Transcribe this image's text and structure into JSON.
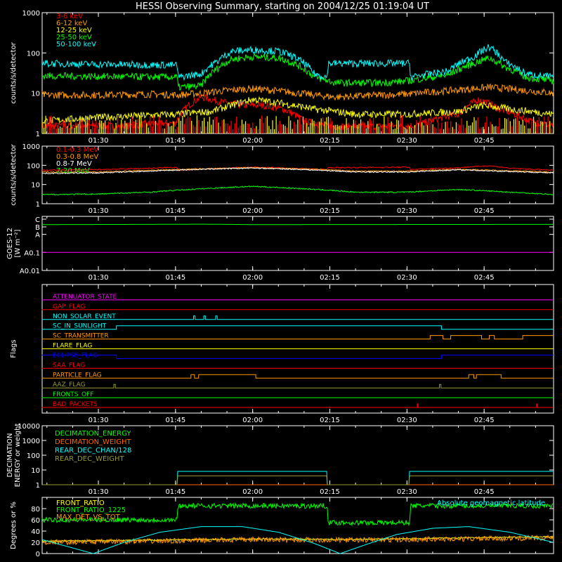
{
  "title": "HESSI Observing Summary, starting on 2004/12/25 01:19:04 UT",
  "time_ticks": [
    {
      "label": "01:30",
      "minutes": 90
    },
    {
      "label": "01:45",
      "minutes": 105
    },
    {
      "label": "02:00",
      "minutes": 120
    },
    {
      "label": "02:15",
      "minutes": 135
    },
    {
      "label": "02:30",
      "minutes": 150
    },
    {
      "label": "02:45",
      "minutes": 165
    }
  ],
  "time_range_minutes": [
    79.07,
    178.5
  ],
  "chart_data": [
    {
      "id": "xray-rates",
      "type": "line",
      "ylabel": "counts/s/detector",
      "yscale": "log",
      "ylim": [
        1,
        1000
      ],
      "yticks": [
        {
          "label": "1",
          "v": 1
        },
        {
          "label": "10",
          "v": 10
        },
        {
          "label": "100",
          "v": 100
        },
        {
          "label": "1000",
          "v": 1000
        }
      ],
      "series": [
        {
          "name": "3-6 keV",
          "color": "#ff0000",
          "x": [
            79,
            86,
            94,
            102,
            105,
            110,
            114,
            118,
            122,
            126,
            130,
            135,
            145,
            152,
            160,
            164,
            168,
            174,
            178.5
          ],
          "y": [
            1.5,
            1.6,
            1.5,
            1.8,
            1.8,
            8,
            6,
            5,
            5,
            4,
            2,
            1.5,
            1.5,
            1.6,
            3,
            7,
            4,
            2,
            1.5
          ]
        },
        {
          "name": "6-12 keV",
          "color": "#ff9900",
          "x": [
            79,
            90,
            100,
            105.5,
            110,
            116,
            120,
            126,
            132,
            136,
            145,
            150,
            160,
            166,
            172,
            178.5
          ],
          "y": [
            9,
            9,
            9.5,
            9,
            10,
            12,
            13,
            11,
            9,
            8,
            9,
            9.5,
            12,
            14,
            12,
            10
          ]
        },
        {
          "name": "12-25 keV",
          "color": "#ffff00",
          "x": [
            79,
            90,
            105,
            112,
            116,
            120,
            124,
            128,
            132,
            140,
            150,
            160,
            165,
            170,
            178.5
          ],
          "y": [
            2,
            2.5,
            3,
            3.5,
            5,
            7,
            6,
            5,
            4,
            3,
            3,
            3.5,
            5,
            4,
            3
          ]
        },
        {
          "name": "25-50 keV",
          "color": "#00ff00",
          "x": [
            79,
            90,
            105.3,
            105.5,
            110,
            113,
            116,
            120,
            125,
            128,
            132,
            136,
            145,
            150,
            158,
            163,
            166,
            169,
            173,
            178.5
          ],
          "y": [
            27,
            26,
            25,
            14,
            15,
            40,
            70,
            80,
            75,
            55,
            25,
            18,
            18,
            20,
            28,
            55,
            75,
            45,
            25,
            20
          ]
        },
        {
          "name": "50-100 keV",
          "color": "#00ffff",
          "x": [
            79,
            90,
            104,
            105.3,
            105.5,
            110,
            113,
            116,
            120,
            125,
            128,
            132,
            134.5,
            134.7,
            145,
            150.5,
            150.7,
            158,
            163,
            166,
            169,
            173,
            178.5
          ],
          "y": [
            55,
            52,
            50,
            50,
            25,
            30,
            60,
            110,
            120,
            110,
            80,
            30,
            25,
            55,
            55,
            55,
            25,
            35,
            80,
            140,
            60,
            30,
            25
          ]
        }
      ],
      "attenuator": {
        "y": 0.7
      },
      "layout_legend": "top-left"
    },
    {
      "id": "gamma-rates",
      "type": "line",
      "ylabel": "counts/s/detector",
      "yscale": "log",
      "ylim": [
        1,
        1000
      ],
      "yticks": [
        {
          "label": "1",
          "v": 1
        },
        {
          "label": "10",
          "v": 10
        },
        {
          "label": "100",
          "v": 100
        },
        {
          "label": "1000",
          "v": 1000
        }
      ],
      "series": [
        {
          "name": "0.1-0.3 MeV",
          "color": "#ff0000",
          "x": [
            79,
            90,
            100,
            105.3,
            105.5,
            120,
            134.5,
            134.7,
            150.5,
            150.7,
            160,
            166,
            170,
            178.5
          ],
          "y": [
            55,
            60,
            70,
            80,
            55,
            80,
            60,
            75,
            80,
            60,
            75,
            95,
            70,
            55
          ]
        },
        {
          "name": "0.3-0.8 MeV",
          "color": "#ff9900",
          "x": [
            79,
            90,
            100,
            110,
            120,
            130,
            140,
            150,
            160,
            170,
            178.5
          ],
          "y": [
            45,
            45,
            55,
            65,
            75,
            65,
            50,
            50,
            62,
            52,
            44
          ]
        },
        {
          "name": "0.8-7 MeV",
          "color": "#ffffff",
          "x": [
            79,
            90,
            100,
            110,
            120,
            130,
            140,
            150,
            160,
            170,
            178.5
          ],
          "y": [
            38,
            40,
            50,
            62,
            72,
            60,
            45,
            45,
            58,
            48,
            40
          ]
        },
        {
          "name": "7-20 MeV",
          "color": "#00ff00",
          "x": [
            79,
            90,
            100,
            110,
            120,
            130,
            140,
            150,
            160,
            170,
            178.5
          ],
          "y": [
            3,
            3.2,
            4,
            6,
            8,
            6,
            4,
            4,
            5.5,
            4,
            3
          ]
        }
      ],
      "layout_legend": "top-left"
    },
    {
      "id": "goes",
      "type": "line",
      "ylabel": "GOES-12 [W m⁻²]",
      "ylabel_lines": [
        "GOES-12",
        "[W m⁻²]"
      ],
      "yscale": "log",
      "ylim": [
        0.01,
        10
      ],
      "yticks": [
        {
          "label": "A0.01",
          "v": 0.01
        },
        {
          "label": "A0.1",
          "v": 0.1
        },
        {
          "label": "A",
          "v": 1
        },
        {
          "label": "B",
          "v": 2.6
        },
        {
          "label": "C",
          "v": 7
        }
      ],
      "series": [
        {
          "name": "",
          "color": "#00ff00",
          "x": [
            79,
            100,
            110,
            120,
            178.5
          ],
          "y": [
            3.5,
            3.6,
            3.7,
            3.5,
            3.6
          ]
        },
        {
          "name": "",
          "color": "#ff00ff",
          "x": [
            79,
            178.5
          ],
          "y": [
            0.1,
            0.1
          ]
        }
      ]
    },
    {
      "id": "flags",
      "type": "line",
      "ylabel": "Flags",
      "ylim": [
        0,
        13
      ],
      "flags": [
        {
          "name": "ATTENUATOR_STATE",
          "color": "#ff00ff",
          "base": 0,
          "x": [
            79,
            178.5
          ],
          "y": [
            0,
            0
          ]
        },
        {
          "name": "GAP_FLAG",
          "color": "#ff0000",
          "base": 1,
          "x": [
            79,
            178.5
          ],
          "y": [
            0,
            0
          ]
        },
        {
          "name": "NON_SOLAR_EVENT",
          "color": "#00ffff",
          "base": 2,
          "x": [
            79,
            108.5,
            108.5,
            108.8,
            108.8,
            110.5,
            110.5,
            110.8,
            110.8,
            112.8,
            112.8,
            113.1,
            113.1,
            178.5
          ],
          "y": [
            0,
            0,
            1,
            1,
            0,
            0,
            1,
            1,
            0,
            0,
            1,
            1,
            0,
            0
          ]
        },
        {
          "name": "SC_IN_SUNLIGHT",
          "color": "#00ffff",
          "base": 3,
          "x": [
            79,
            93.5,
            93.5,
            156.7,
            156.7,
            178.5
          ],
          "y": [
            0,
            0,
            1,
            1,
            0,
            0
          ]
        },
        {
          "name": "SC_TRANSMITTER",
          "color": "#ff9900",
          "base": 4,
          "x": [
            79,
            154.5,
            154.5,
            157,
            157,
            158.5,
            158.5,
            164.5,
            164.5,
            166,
            166,
            167,
            167,
            172.5,
            172.5,
            178.5
          ],
          "y": [
            0,
            0,
            1,
            1,
            0,
            0,
            1,
            1,
            0,
            0,
            1,
            1,
            0,
            0,
            1,
            1
          ]
        },
        {
          "name": "FLARE_FLAG",
          "color": "#ffff00",
          "base": 5,
          "x": [
            79,
            178.5
          ],
          "y": [
            0,
            0
          ]
        },
        {
          "name": "ECLIPSE_FLAG",
          "color": "#0000ff",
          "base": 6,
          "x": [
            79,
            93.5,
            93.5,
            156.7,
            156.7,
            178.5
          ],
          "y": [
            1,
            1,
            0,
            0,
            1,
            1
          ]
        },
        {
          "name": "SAA_FLAG",
          "color": "#ff0000",
          "base": 7,
          "x": [
            79,
            178.5
          ],
          "y": [
            0,
            0
          ]
        },
        {
          "name": "PARTICLE_FLAG",
          "color": "#ff9900",
          "base": 8,
          "x": [
            79,
            108,
            108,
            108.7,
            108.7,
            109.5,
            109.5,
            120.6,
            120.6,
            162,
            162,
            163,
            163,
            163.5,
            163.5,
            168.3,
            168.3,
            178.5
          ],
          "y": [
            0,
            0,
            1,
            1,
            0,
            0,
            1,
            1,
            0,
            0,
            1,
            1,
            0,
            0,
            1,
            1,
            0,
            0
          ]
        },
        {
          "name": "AAZ_FLAG",
          "color": "#999933",
          "base": 9,
          "x": [
            79,
            93,
            93,
            93.3,
            93.3,
            156.3,
            156.3,
            156.6,
            156.6,
            178.5
          ],
          "y": [
            0,
            0,
            1,
            1,
            0,
            0,
            1,
            1,
            0,
            0
          ]
        },
        {
          "name": "FRONTS_OFF",
          "color": "#00ff00",
          "base": 10,
          "x": [
            79,
            178.5
          ],
          "y": [
            0,
            0
          ]
        },
        {
          "name": "BAD_PACKETS",
          "color": "#ff0000",
          "base": 11,
          "x": [
            79,
            152,
            152,
            152.15,
            152.15,
            175.2,
            175.2,
            175.35,
            175.35,
            178.5
          ],
          "y": [
            0,
            0,
            1,
            1,
            0,
            0,
            1,
            1,
            0,
            0
          ]
        }
      ]
    },
    {
      "id": "decimation",
      "type": "line",
      "ylabel": "DECIMATION ENERGY or weight",
      "ylabel_lines": [
        "DECIMATION",
        "ENERGY or weight"
      ],
      "yscale": "log",
      "ylim": [
        1,
        10000
      ],
      "yticks": [
        {
          "label": "1",
          "v": 1
        },
        {
          "label": "10",
          "v": 10
        },
        {
          "label": "100",
          "v": 100
        },
        {
          "label": "1000",
          "v": 1000
        },
        {
          "label": "10000",
          "v": 10000
        }
      ],
      "series": [
        {
          "name": "DECIMATION_ENERGY",
          "color": "#00ff00",
          "x": [
            79,
            178.5
          ],
          "y": [
            1,
            1
          ]
        },
        {
          "name": "DECIMATION_WEIGHT",
          "color": "#ff6600",
          "x": [
            79,
            178.5
          ],
          "y": [
            1,
            1
          ]
        },
        {
          "name": "REAR_DEC_CHAN/128",
          "color": "#00ffff",
          "x": [
            79,
            105.3,
            105.3,
            134.5,
            134.5,
            150.5,
            150.5,
            178.5
          ],
          "y": [
            1,
            1,
            8,
            8,
            1,
            1,
            8,
            8
          ]
        },
        {
          "name": "REAR_DEC_WEIGHT",
          "color": "#999933",
          "x": [
            79,
            105.3,
            105.3,
            134.5,
            134.5,
            150.5,
            150.5,
            178.5
          ],
          "y": [
            1,
            1,
            4,
            4,
            1,
            1,
            4,
            4
          ]
        }
      ]
    },
    {
      "id": "ratios",
      "type": "line",
      "ylabel": "Degrees or %",
      "ylim": [
        0,
        100
      ],
      "yticks": [
        {
          "label": "0",
          "v": 0
        },
        {
          "label": "20",
          "v": 20
        },
        {
          "label": "40",
          "v": 40
        },
        {
          "label": "60",
          "v": 60
        },
        {
          "label": "80",
          "v": 80
        }
      ],
      "series": [
        {
          "name": "FRONT_RATIO",
          "color": "#ffff00",
          "x": [
            79,
            100,
            120,
            140,
            160,
            178.5
          ],
          "y": [
            22,
            24,
            26,
            25,
            28,
            30
          ]
        },
        {
          "name": "FRONT_RATIO_1225",
          "color": "#00ff00",
          "x": [
            79,
            105.3,
            105.5,
            134.5,
            134.7,
            150.5,
            150.7,
            178.5
          ],
          "y": [
            60,
            60,
            85,
            85,
            55,
            55,
            85,
            85
          ]
        },
        {
          "name": "MAX_DET_VS_TOT",
          "color": "#ff9900",
          "x": [
            79,
            100,
            120,
            140,
            160,
            178.5
          ],
          "y": [
            20,
            22,
            25,
            24,
            26,
            28
          ]
        },
        {
          "name": "Absolute geomagnetic latitude",
          "color": "#00ffff",
          "x": [
            79,
            83,
            89,
            95,
            102,
            110,
            118,
            125,
            132,
            137,
            142,
            148,
            155,
            162,
            170,
            178.5
          ],
          "y": [
            25,
            15,
            0,
            20,
            38,
            48,
            48,
            38,
            18,
            0,
            16,
            34,
            45,
            48,
            38,
            20
          ]
        }
      ]
    }
  ]
}
